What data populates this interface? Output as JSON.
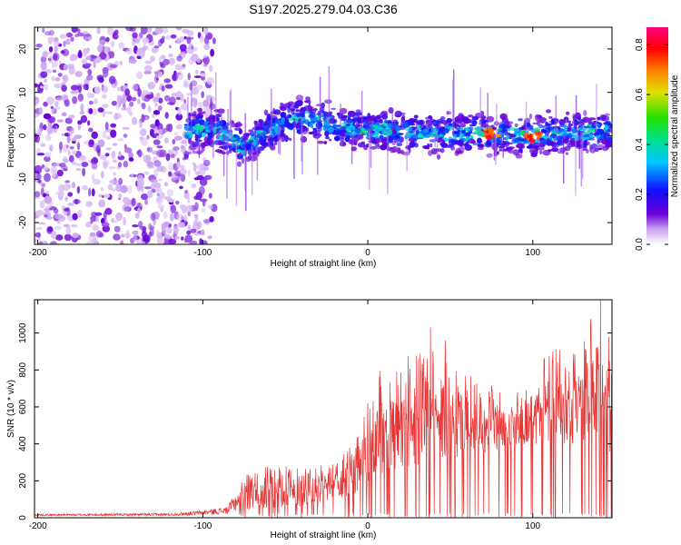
{
  "title": "S197.2025.279.04.03.C36",
  "chart_data": [
    {
      "type": "heatmap",
      "title": "S197.2025.279.04.03.C36",
      "xlabel": "Height of straight line (km)",
      "ylabel": "Frequency (Hz)",
      "xlim": [
        -202,
        148
      ],
      "ylim": [
        -25,
        25
      ],
      "xticks": [
        -200,
        -100,
        0,
        100
      ],
      "yticks": [
        -20,
        -10,
        0,
        10,
        20
      ],
      "colorbar": {
        "label": "Normalized spectral amplitude",
        "range": [
          0.0,
          0.87
        ],
        "ticks": [
          0.0,
          0.2,
          0.4,
          0.6,
          0.8
        ],
        "colormap": "rainbow (white-violet-blue-cyan-green-yellow-red-magenta)"
      },
      "features": {
        "noise_region_km": [
          -202,
          -93
        ],
        "signal_start_km": -110,
        "trace_center_hz": [
          {
            "x": -108,
            "y": 1
          },
          {
            "x": -95,
            "y": 2
          },
          {
            "x": -85,
            "y": 0
          },
          {
            "x": -75,
            "y": -3
          },
          {
            "x": -65,
            "y": 0
          },
          {
            "x": -55,
            "y": 2
          },
          {
            "x": -45,
            "y": 4
          },
          {
            "x": -35,
            "y": 4
          },
          {
            "x": -25,
            "y": 3
          },
          {
            "x": -15,
            "y": 2
          },
          {
            "x": 0,
            "y": 1.5
          },
          {
            "x": 20,
            "y": 1
          },
          {
            "x": 40,
            "y": 0.5
          },
          {
            "x": 60,
            "y": 0.5
          },
          {
            "x": 80,
            "y": 0.5
          },
          {
            "x": 100,
            "y": 0
          },
          {
            "x": 120,
            "y": 0.5
          },
          {
            "x": 135,
            "y": 1
          },
          {
            "x": 148,
            "y": 1
          }
        ],
        "peak_amplitude_regions_km": [
          [
            70,
            80
          ],
          [
            95,
            105
          ]
        ]
      }
    },
    {
      "type": "line",
      "xlabel": "Height of straight line (km)",
      "ylabel": "SNR (10 * v/v)",
      "xlim": [
        -202,
        148
      ],
      "ylim": [
        0,
        1180
      ],
      "xticks": [
        -200,
        -100,
        0,
        100
      ],
      "yticks": [
        0,
        200,
        400,
        600,
        800,
        1000
      ],
      "color": "#e83434",
      "envelope": [
        {
          "x": -202,
          "base": 10,
          "peak": 20
        },
        {
          "x": -120,
          "base": 10,
          "peak": 25
        },
        {
          "x": -100,
          "base": 15,
          "peak": 40
        },
        {
          "x": -85,
          "base": 20,
          "peak": 60
        },
        {
          "x": -75,
          "base": 40,
          "peak": 230
        },
        {
          "x": -60,
          "base": 50,
          "peak": 290
        },
        {
          "x": -40,
          "base": 60,
          "peak": 280
        },
        {
          "x": -20,
          "base": 80,
          "peak": 300
        },
        {
          "x": -5,
          "base": 120,
          "peak": 500
        },
        {
          "x": 5,
          "base": 200,
          "peak": 800
        },
        {
          "x": 20,
          "base": 250,
          "peak": 820
        },
        {
          "x": 35,
          "base": 300,
          "peak": 1000
        },
        {
          "x": 50,
          "base": 320,
          "peak": 850
        },
        {
          "x": 70,
          "base": 350,
          "peak": 750
        },
        {
          "x": 90,
          "base": 380,
          "peak": 700
        },
        {
          "x": 110,
          "base": 400,
          "peak": 920
        },
        {
          "x": 125,
          "base": 400,
          "peak": 900
        },
        {
          "x": 140,
          "base": 380,
          "peak": 1175
        },
        {
          "x": 148,
          "base": 300,
          "peak": 980
        }
      ],
      "notable_peaks": [
        {
          "x": 38,
          "y": 1030
        },
        {
          "x": 47,
          "y": 960
        },
        {
          "x": 114,
          "y": 910
        },
        {
          "x": 141,
          "y": 1175
        },
        {
          "x": 146,
          "y": 980
        }
      ]
    }
  ]
}
